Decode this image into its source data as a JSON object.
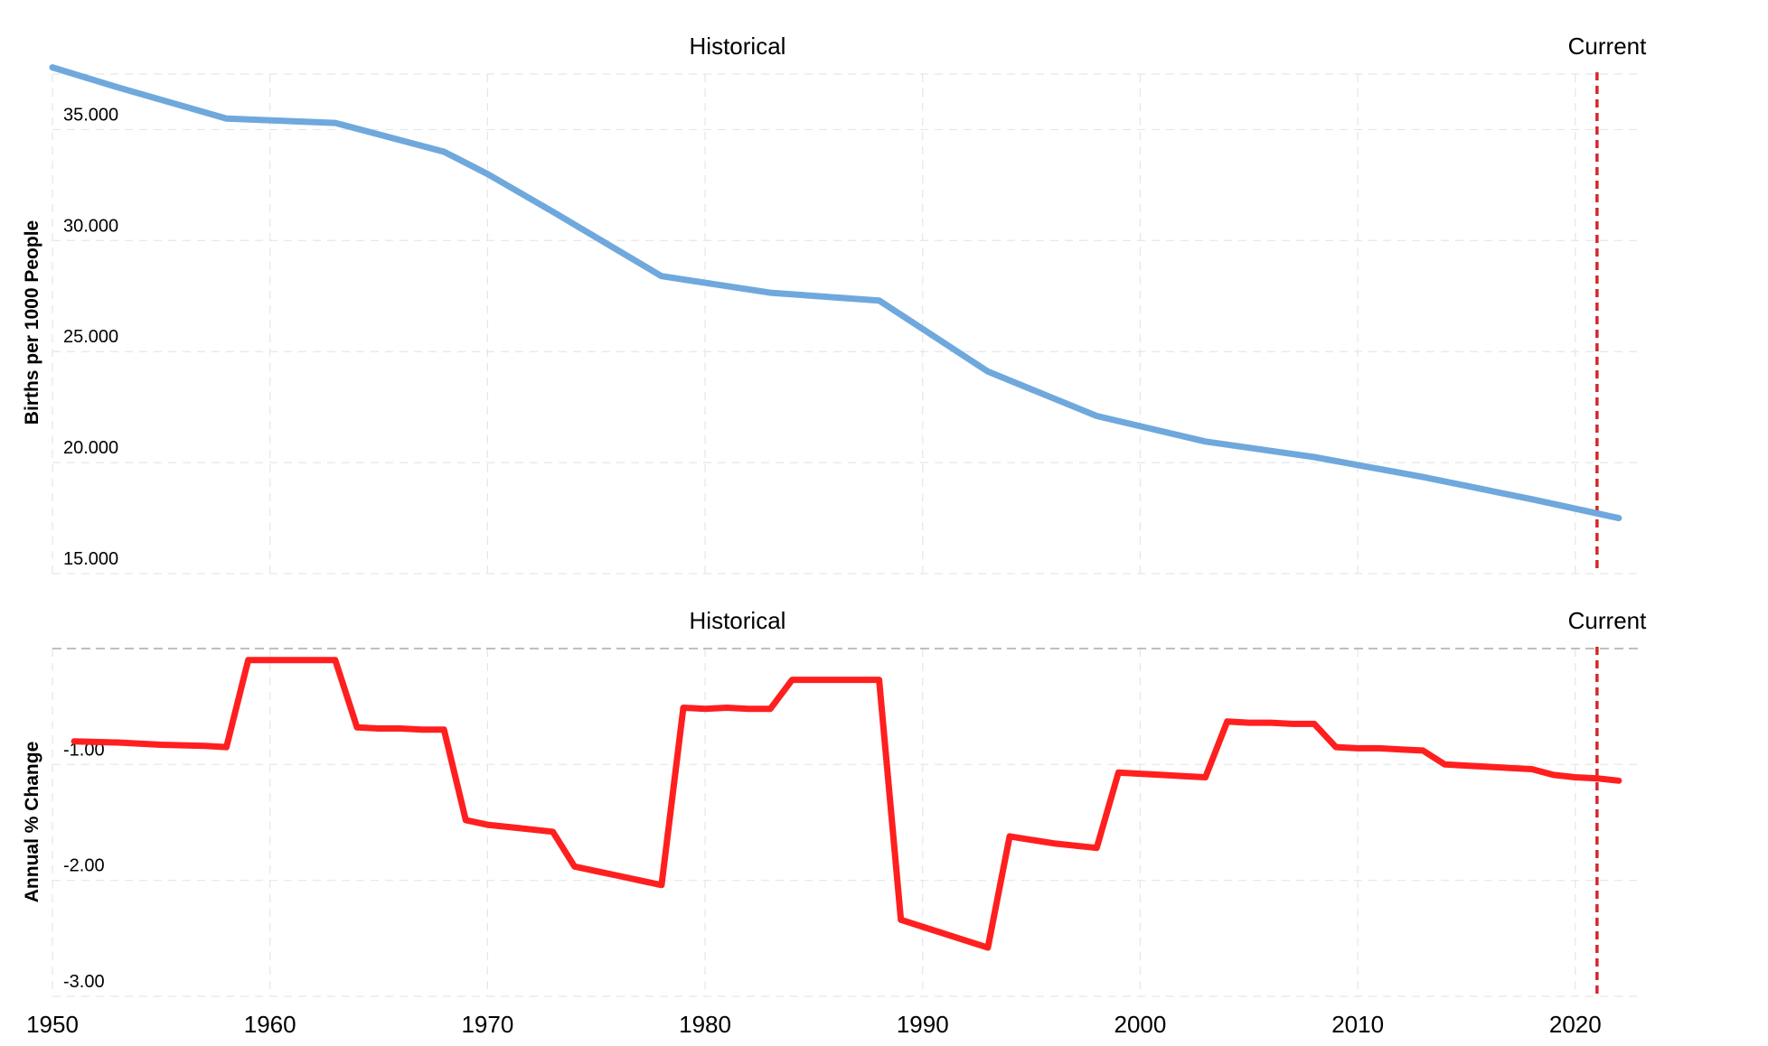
{
  "colors": {
    "top_series": "#6fa8dc",
    "bottom_series": "#ff1f1f",
    "current_marker": "#d62728",
    "grid": "#e6e6e6",
    "zero_line": "#aaaaaa"
  },
  "chart_data": [
    {
      "type": "line",
      "ylabel": "Births per 1000 People",
      "annotations": [
        "Historical",
        "Current"
      ],
      "current_year": 2021,
      "xlim": [
        1950,
        2023
      ],
      "ylim": [
        15,
        37.5
      ],
      "yticks": [
        15,
        20,
        25,
        30,
        35
      ],
      "ytick_labels": [
        "15.000",
        "20.000",
        "25.000",
        "30.000",
        "35.000"
      ],
      "grid": true,
      "series": [
        {
          "x": [
            1950,
            1953,
            1958,
            1963,
            1968,
            1970,
            1973,
            1978,
            1983,
            1988,
            1993,
            1998,
            2003,
            2008,
            2013,
            2018,
            2022
          ],
          "y": [
            37.8,
            36.9,
            35.5,
            35.3,
            34.0,
            33.0,
            31.3,
            28.4,
            27.65,
            27.3,
            24.1,
            22.1,
            20.95,
            20.25,
            19.35,
            18.35,
            17.5
          ]
        }
      ]
    },
    {
      "type": "line",
      "ylabel": "Annual % Change",
      "annotations": [
        "Historical",
        "Current"
      ],
      "current_year": 2021,
      "xlim": [
        1950,
        2023
      ],
      "ylim": [
        -3.0,
        0.0
      ],
      "yticks": [
        -3,
        -2,
        -1
      ],
      "ytick_labels": [
        "-3.00",
        "-2.00",
        "-1.00"
      ],
      "xticks": [
        1950,
        1960,
        1970,
        1980,
        1990,
        2000,
        2010,
        2020
      ],
      "xtick_labels": [
        "1950",
        "1960",
        "1970",
        "1980",
        "1990",
        "2000",
        "2010",
        "2020"
      ],
      "grid": true,
      "series": [
        {
          "x": [
            1951,
            1953,
            1955,
            1957,
            1958,
            1959,
            1960,
            1961,
            1962,
            1963,
            1964,
            1965,
            1966,
            1967,
            1968,
            1969,
            1970,
            1971,
            1972,
            1973,
            1974,
            1975,
            1976,
            1977,
            1978,
            1979,
            1980,
            1981,
            1982,
            1983,
            1984,
            1985,
            1986,
            1987,
            1988,
            1989,
            1990,
            1991,
            1992,
            1993,
            1994,
            1995,
            1996,
            1997,
            1998,
            1999,
            2000,
            2001,
            2002,
            2003,
            2004,
            2005,
            2006,
            2007,
            2008,
            2009,
            2010,
            2011,
            2012,
            2013,
            2014,
            2015,
            2016,
            2017,
            2018,
            2019,
            2020,
            2021,
            2022
          ],
          "y": [
            -0.8,
            -0.81,
            -0.83,
            -0.84,
            -0.85,
            -0.1,
            -0.1,
            -0.1,
            -0.1,
            -0.1,
            -0.68,
            -0.69,
            -0.69,
            -0.7,
            -0.7,
            -1.48,
            -1.52,
            -1.54,
            -1.56,
            -1.58,
            -1.88,
            -1.92,
            -1.96,
            -2.0,
            -2.04,
            -0.51,
            -0.52,
            -0.51,
            -0.52,
            -0.52,
            -0.27,
            -0.27,
            -0.27,
            -0.27,
            -0.27,
            -2.34,
            -2.4,
            -2.46,
            -2.52,
            -2.58,
            -1.62,
            -1.65,
            -1.68,
            -1.7,
            -1.72,
            -1.07,
            -1.08,
            -1.09,
            -1.1,
            -1.11,
            -0.63,
            -0.64,
            -0.64,
            -0.65,
            -0.65,
            -0.85,
            -0.86,
            -0.86,
            -0.87,
            -0.88,
            -1.0,
            -1.01,
            -1.02,
            -1.03,
            -1.04,
            -1.09,
            -1.11,
            -1.12,
            -1.14
          ]
        }
      ]
    }
  ]
}
